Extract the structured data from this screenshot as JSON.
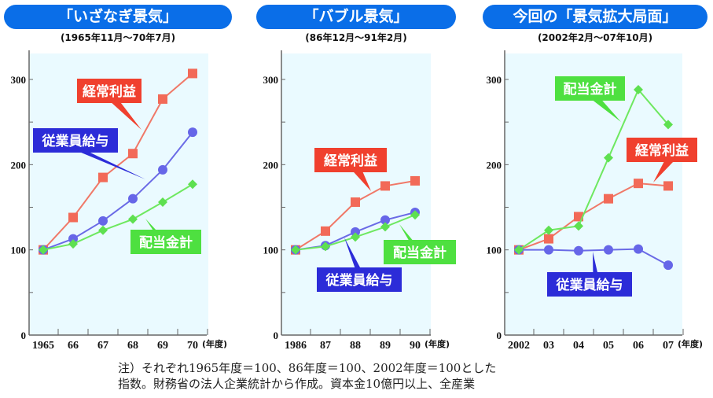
{
  "colors": {
    "header": "#0a6ee8",
    "keijo_rieki": "#f0402e",
    "jugyoin_kyuyo": "#2c2cd8",
    "haito": "#4ee040",
    "plot_bg": "#eafaff"
  },
  "note": [
    "注）それぞれ1965年度＝100、86年度＝100、2002年度＝100とした",
    "指数。財務省の法人企業統計から作成。資本金10億円以上、全産業"
  ],
  "chart_data": [
    {
      "type": "line",
      "title": "「いざなぎ景気」",
      "subtitle": "(1965年11月～70年7月)",
      "categories": [
        "1965",
        "66",
        "67",
        "68",
        "69",
        "70"
      ],
      "xlabel": "(年度)",
      "ylim": [
        0,
        300
      ],
      "yticks": [
        "0",
        "100",
        "200",
        "300"
      ],
      "grid": false,
      "series": [
        {
          "name": "経常利益",
          "key": "keijo_rieki",
          "marker": "square",
          "values": [
            100,
            138,
            185,
            213,
            277,
            307
          ]
        },
        {
          "name": "従業員給与",
          "key": "jugyoin_kyuyo",
          "marker": "circle",
          "values": [
            100,
            113,
            134,
            160,
            194,
            238
          ]
        },
        {
          "name": "配当金計",
          "key": "haito",
          "marker": "diamond",
          "values": [
            100,
            107,
            123,
            136,
            156,
            177
          ]
        }
      ]
    },
    {
      "type": "line",
      "title": "「バブル景気」",
      "subtitle": "(86年12月～91年2月)",
      "categories": [
        "1986",
        "87",
        "88",
        "89",
        "90"
      ],
      "xlabel": "(年度)",
      "ylim": [
        0,
        300
      ],
      "yticks": [
        "0",
        "100",
        "200",
        "300"
      ],
      "grid": false,
      "series": [
        {
          "name": "経常利益",
          "key": "keijo_rieki",
          "marker": "square",
          "values": [
            100,
            122,
            156,
            175,
            181
          ]
        },
        {
          "name": "従業員給与",
          "key": "jugyoin_kyuyo",
          "marker": "circle",
          "values": [
            100,
            105,
            121,
            135,
            144
          ]
        },
        {
          "name": "配当金計",
          "key": "haito",
          "marker": "diamond",
          "values": [
            100,
            104,
            115,
            127,
            141
          ]
        }
      ]
    },
    {
      "type": "line",
      "title": "今回の「景気拡大局面」",
      "subtitle": "(2002年2月～07年10月)",
      "categories": [
        "2002",
        "03",
        "04",
        "05",
        "06",
        "07"
      ],
      "xlabel": "(年度)",
      "ylim": [
        0,
        300
      ],
      "yticks": [
        "0",
        "100",
        "200",
        "300"
      ],
      "grid": false,
      "series": [
        {
          "name": "経常利益",
          "key": "keijo_rieki",
          "marker": "square",
          "values": [
            100,
            113,
            139,
            160,
            178,
            175
          ]
        },
        {
          "name": "従業員給与",
          "key": "jugyoin_kyuyo",
          "marker": "circle",
          "values": [
            100,
            100,
            99,
            100,
            101,
            82
          ]
        },
        {
          "name": "配当金計",
          "key": "haito",
          "marker": "diamond",
          "values": [
            100,
            123,
            128,
            208,
            288,
            247
          ]
        }
      ]
    }
  ]
}
